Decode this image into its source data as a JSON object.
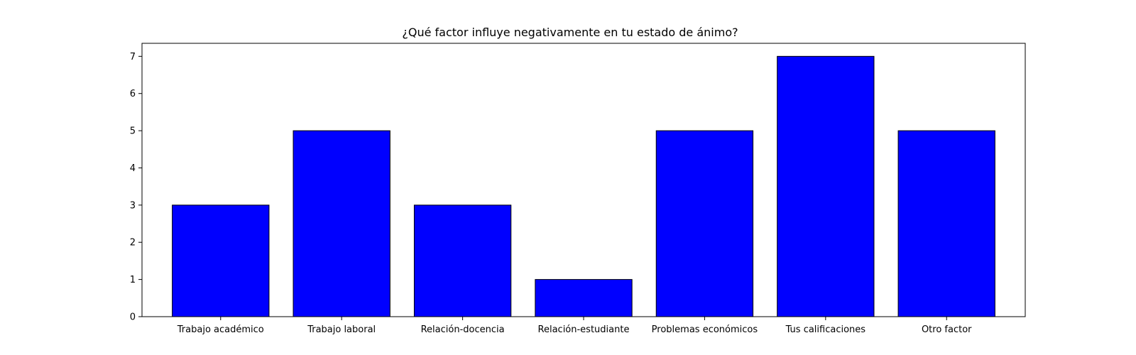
{
  "chart_data": {
    "type": "bar",
    "title": "¿Qué factor influye negativamente en tu estado de ánimo?",
    "xlabel": "",
    "ylabel": "",
    "categories": [
      "Trabajo académico",
      "Trabajo laboral",
      "Relación-docencia",
      "Relación-estudiante",
      "Problemas económicos",
      "Tus calificaciones",
      "Otro factor"
    ],
    "values": [
      3,
      5,
      3,
      1,
      5,
      7,
      5
    ],
    "ylim": [
      0,
      7.35
    ],
    "yticks": [
      "0",
      "1",
      "2",
      "3",
      "4",
      "5",
      "6",
      "7"
    ],
    "grid": false,
    "legend": "none",
    "colors": {
      "bar_fill": "#0000ff",
      "bar_edge": "#000000",
      "axis": "#000000",
      "background": "#ffffff"
    }
  }
}
